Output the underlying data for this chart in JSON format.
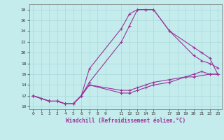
{
  "xlabel": "Windchill (Refroidissement éolien,°C)",
  "bg_color": "#c5eced",
  "grid_color": "#a8d8da",
  "line_color": "#993399",
  "xlim": [
    -0.5,
    23.5
  ],
  "ylim": [
    9.5,
    29
  ],
  "xticks": [
    0,
    1,
    2,
    3,
    4,
    5,
    6,
    7,
    8,
    9,
    11,
    12,
    13,
    14,
    15,
    17,
    18,
    19,
    20,
    21,
    22,
    23
  ],
  "yticks": [
    10,
    12,
    14,
    16,
    18,
    20,
    22,
    24,
    26,
    28
  ],
  "lines": [
    {
      "x": [
        0,
        1,
        2,
        3,
        4,
        5,
        6,
        7,
        11,
        12,
        13,
        14,
        15,
        17,
        20,
        21,
        22,
        23
      ],
      "y": [
        12,
        11.5,
        11,
        11,
        10.5,
        10.5,
        12,
        17,
        24.5,
        27.2,
        28,
        28,
        28,
        24,
        21,
        20,
        19,
        16
      ]
    },
    {
      "x": [
        0,
        2,
        3,
        4,
        5,
        6,
        7,
        11,
        12,
        13,
        14,
        15,
        17,
        20,
        21,
        22,
        23
      ],
      "y": [
        12,
        11,
        11,
        10.5,
        10.5,
        12,
        14.5,
        22,
        25,
        28,
        28,
        28,
        24,
        19.5,
        18.5,
        18,
        17.2
      ]
    },
    {
      "x": [
        0,
        2,
        3,
        4,
        5,
        6,
        7,
        11,
        12,
        13,
        14,
        15,
        17,
        19,
        20,
        22,
        23
      ],
      "y": [
        12,
        11,
        11,
        10.5,
        10.5,
        12,
        14,
        13,
        13,
        13.5,
        14,
        14.5,
        15,
        15.5,
        15.5,
        16,
        16
      ]
    },
    {
      "x": [
        0,
        2,
        3,
        4,
        5,
        6,
        7,
        11,
        12,
        13,
        14,
        15,
        17,
        19,
        20,
        21,
        22,
        23
      ],
      "y": [
        12,
        11,
        11,
        10.5,
        10.5,
        12,
        14,
        12.5,
        12.5,
        13,
        13.5,
        14,
        14.5,
        15.5,
        16,
        16.5,
        16,
        16
      ]
    }
  ]
}
